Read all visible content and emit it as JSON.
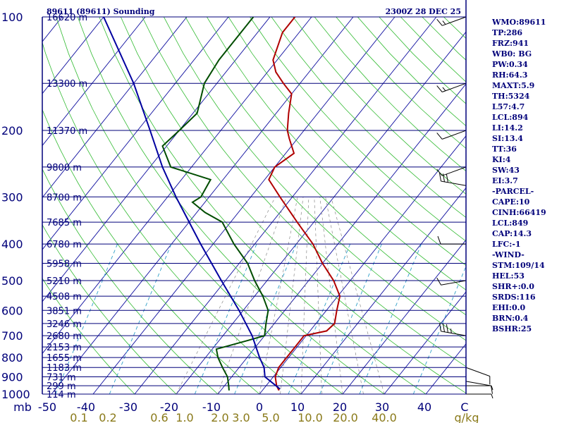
{
  "header": {
    "station": "89611 (89611) Sounding",
    "time": "2300Z 28 DEC 25"
  },
  "stats": [
    "WMO:89611",
    "TP:286",
    "FRZ:941",
    "WB0: BG",
    "PW:0.34",
    "RH:64.3",
    "MAXT:5.9",
    "TH:5324",
    "L57:4.7",
    "LCL:894",
    "LI:14.2",
    "SI:13.4",
    "TT:36",
    "KI:4",
    "SW:43",
    "EI:3.7",
    "-PARCEL-",
    "CAPE:10",
    "CINH:66419",
    "LCL:849",
    "CAP:14.3",
    "LFC:-1",
    "-WIND-",
    "STM:109/14",
    "HEL:53",
    "SHR+:0.0",
    "SRDS:116",
    "EHI:0.0",
    "BRN:0.4",
    "BSHR:25"
  ],
  "chart_data": {
    "type": "line",
    "title": "89611 (89611) Sounding",
    "subtitle": "2300Z 28 DEC 25",
    "xlabel": "",
    "ylabel": "mb",
    "temperature_ticks": [
      "-50",
      "-40",
      "-30",
      "-20",
      "-10",
      "0",
      "10",
      "20",
      "30",
      "40",
      "C"
    ],
    "mixing_ratio_ticks": [
      "0.1",
      "0.2",
      "0.6",
      "1.0",
      "2.0",
      "3.0",
      "5.0",
      "10.0",
      "20.0",
      "40.0",
      "g/kg"
    ],
    "pressure_levels": [
      100,
      200,
      300,
      400,
      500,
      600,
      700,
      800,
      900,
      1000
    ],
    "pressure_tick_labels": [
      "100",
      "200",
      "300",
      "400",
      "500",
      "600",
      "700",
      "800",
      "900",
      "1000"
    ],
    "height_labels": [
      {
        "p": 100,
        "label": "16620 m"
      },
      {
        "p": 150,
        "label": "13300 m"
      },
      {
        "p": 200,
        "label": "11370 m"
      },
      {
        "p": 250,
        "label": "9800 m"
      },
      {
        "p": 300,
        "label": "8700 m"
      },
      {
        "p": 350,
        "label": "7685 m"
      },
      {
        "p": 400,
        "label": "6780 m"
      },
      {
        "p": 450,
        "label": "5958 m"
      },
      {
        "p": 500,
        "label": "5210 m"
      },
      {
        "p": 550,
        "label": "4508 m"
      },
      {
        "p": 600,
        "label": "3851 m"
      },
      {
        "p": 650,
        "label": "3246 m"
      },
      {
        "p": 700,
        "label": "2680 m"
      },
      {
        "p": 750,
        "label": "2153 m"
      },
      {
        "p": 800,
        "label": "1655 m"
      },
      {
        "p": 850,
        "label": "1183 m"
      },
      {
        "p": 900,
        "label": "731 m"
      },
      {
        "p": 950,
        "label": "299 m"
      },
      {
        "p": 1000,
        "label": "114 m"
      }
    ],
    "series": [
      {
        "color": "#b00000",
        "points": [
          [
            978,
            4
          ],
          [
            950,
            2.5
          ],
          [
            900,
            0.5
          ],
          [
            850,
            -0.5
          ],
          [
            800,
            -0.5
          ],
          [
            750,
            -0.5
          ],
          [
            700,
            -0.5
          ],
          [
            680,
            4
          ],
          [
            650,
            4.5
          ],
          [
            600,
            2.5
          ],
          [
            550,
            0.5
          ],
          [
            500,
            -4
          ],
          [
            450,
            -10
          ],
          [
            400,
            -16
          ],
          [
            350,
            -24
          ],
          [
            300,
            -33
          ],
          [
            270,
            -39
          ],
          [
            250,
            -40
          ],
          [
            230,
            -38
          ],
          [
            210,
            -42
          ],
          [
            200,
            -44
          ],
          [
            180,
            -47
          ],
          [
            160,
            -50
          ],
          [
            150,
            -54
          ],
          [
            140,
            -58
          ],
          [
            130,
            -61
          ],
          [
            110,
            -64
          ],
          [
            100,
            -64
          ]
        ]
      },
      {
        "color": "#004d00",
        "points": [
          [
            978,
            -8
          ],
          [
            950,
            -9
          ],
          [
            900,
            -11
          ],
          [
            850,
            -14
          ],
          [
            800,
            -17
          ],
          [
            760,
            -19
          ],
          [
            720,
            -13
          ],
          [
            700,
            -10
          ],
          [
            650,
            -12
          ],
          [
            600,
            -14
          ],
          [
            550,
            -18
          ],
          [
            500,
            -23
          ],
          [
            450,
            -28
          ],
          [
            400,
            -35
          ],
          [
            350,
            -42
          ],
          [
            330,
            -48
          ],
          [
            310,
            -53
          ],
          [
            300,
            -52
          ],
          [
            270,
            -53
          ],
          [
            250,
            -65
          ],
          [
            220,
            -71
          ],
          [
            200,
            -70
          ],
          [
            180,
            -69
          ],
          [
            150,
            -73
          ],
          [
            130,
            -74
          ],
          [
            110,
            -74
          ],
          [
            100,
            -74
          ]
        ]
      },
      {
        "color": "#0000a0",
        "points": [
          [
            970,
            4
          ],
          [
            900,
            -2
          ],
          [
            850,
            -4
          ],
          [
            800,
            -7
          ],
          [
            700,
            -13
          ],
          [
            600,
            -21
          ],
          [
            500,
            -31
          ],
          [
            400,
            -43
          ],
          [
            300,
            -58
          ],
          [
            250,
            -67
          ],
          [
            200,
            -77
          ],
          [
            150,
            -90
          ],
          [
            100,
            -110
          ]
        ]
      }
    ],
    "wind_barbs": [
      {
        "p": 100,
        "dir": 250,
        "spd": 15
      },
      {
        "p": 150,
        "dir": 250,
        "spd": 15
      },
      {
        "p": 200,
        "dir": 250,
        "spd": 10
      },
      {
        "p": 250,
        "dir": 250,
        "spd": 10
      },
      {
        "p": 280,
        "dir": 280,
        "spd": 30
      },
      {
        "p": 400,
        "dir": 270,
        "spd": 10
      },
      {
        "p": 500,
        "dir": 260,
        "spd": 10
      },
      {
        "p": 700,
        "dir": 280,
        "spd": 35
      },
      {
        "p": 850,
        "dir": 110,
        "spd": 10
      },
      {
        "p": 925,
        "dir": 100,
        "spd": 10
      },
      {
        "p": 950,
        "dir": 90,
        "spd": 5
      },
      {
        "p": 1000,
        "dir": 90,
        "spd": 5
      }
    ]
  }
}
